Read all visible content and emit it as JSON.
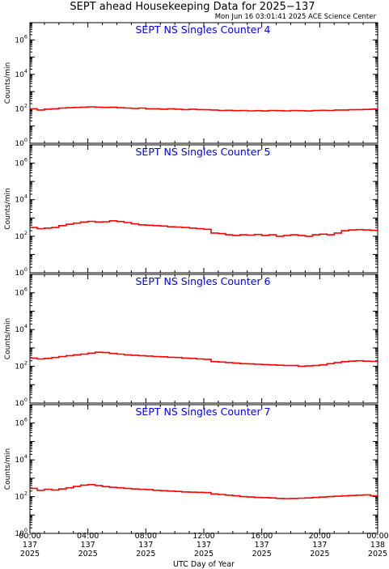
{
  "title": "SEPT ahead Housekeeping Data for 2025−137",
  "subtitle": "Mon Jun 16 03:01:41 2025 ACE Science Center",
  "xlabel": "UTC Day of Year",
  "colors": {
    "series": "#ff0000",
    "panel_title": "#0000ff",
    "axes": "#000000"
  },
  "chart_data": [
    {
      "type": "line",
      "title": "SEPT NS Singles Counter 4",
      "ylabel": "Counts/min",
      "yscale": "log",
      "ylim": [
        1,
        10000000
      ],
      "yticks": [
        {
          "base": "10",
          "exp": "0"
        },
        {
          "base": "10",
          "exp": "2"
        },
        {
          "base": "10",
          "exp": "4"
        },
        {
          "base": "10",
          "exp": "6"
        }
      ],
      "xlim": [
        0,
        24
      ],
      "x": [
        0,
        0.5,
        1,
        1.5,
        2,
        2.5,
        3,
        3.5,
        4,
        4.5,
        5,
        5.5,
        6,
        6.5,
        7,
        7.5,
        8,
        8.5,
        9,
        9.5,
        10,
        10.5,
        11,
        11.5,
        12,
        12.5,
        13,
        13.5,
        14,
        14.5,
        15,
        15.5,
        16,
        16.5,
        17,
        17.5,
        18,
        18.5,
        19,
        19.5,
        20,
        20.5,
        21,
        21.5,
        22,
        22.5,
        23,
        23.5
      ],
      "values": [
        100,
        85,
        95,
        100,
        110,
        115,
        120,
        125,
        130,
        125,
        120,
        125,
        115,
        110,
        105,
        110,
        100,
        100,
        95,
        100,
        95,
        90,
        95,
        90,
        88,
        85,
        80,
        82,
        78,
        80,
        76,
        78,
        75,
        80,
        78,
        76,
        80,
        78,
        75,
        80,
        82,
        80,
        85,
        85,
        88,
        90,
        92,
        95
      ]
    },
    {
      "type": "line",
      "title": "SEPT NS Singles Counter 5",
      "ylabel": "Counts/min",
      "yscale": "log",
      "ylim": [
        1,
        10000000
      ],
      "yticks": [
        {
          "base": "10",
          "exp": "0"
        },
        {
          "base": "10",
          "exp": "2"
        },
        {
          "base": "10",
          "exp": "4"
        },
        {
          "base": "10",
          "exp": "6"
        }
      ],
      "xlim": [
        0,
        24
      ],
      "x": [
        0,
        0.5,
        1,
        1.5,
        2,
        2.5,
        3,
        3.5,
        4,
        4.5,
        5,
        5.5,
        6,
        6.5,
        7,
        7.5,
        8,
        8.5,
        9,
        9.5,
        10,
        10.5,
        11,
        11.5,
        12,
        12.5,
        13,
        13.5,
        14,
        14.5,
        15,
        15.5,
        16,
        16.5,
        17,
        17.5,
        18,
        18.5,
        19,
        19.5,
        20,
        20.5,
        21,
        21.5,
        22,
        22.5,
        23,
        23.5
      ],
      "values": [
        300,
        260,
        280,
        300,
        380,
        450,
        520,
        600,
        650,
        600,
        620,
        700,
        640,
        560,
        480,
        420,
        400,
        380,
        360,
        330,
        320,
        300,
        280,
        260,
        240,
        150,
        140,
        120,
        110,
        120,
        115,
        125,
        110,
        120,
        100,
        110,
        120,
        110,
        100,
        120,
        130,
        120,
        150,
        200,
        220,
        230,
        220,
        210
      ]
    },
    {
      "type": "line",
      "title": "SEPT NS Singles Counter 6",
      "ylabel": "Counts/min",
      "yscale": "log",
      "ylim": [
        1,
        10000000
      ],
      "yticks": [
        {
          "base": "10",
          "exp": "0"
        },
        {
          "base": "10",
          "exp": "2"
        },
        {
          "base": "10",
          "exp": "4"
        },
        {
          "base": "10",
          "exp": "6"
        }
      ],
      "xlim": [
        0,
        24
      ],
      "x": [
        0,
        0.5,
        1,
        1.5,
        2,
        2.5,
        3,
        3.5,
        4,
        4.5,
        5,
        5.5,
        6,
        6.5,
        7,
        7.5,
        8,
        8.5,
        9,
        9.5,
        10,
        10.5,
        11,
        11.5,
        12,
        12.5,
        13,
        13.5,
        14,
        14.5,
        15,
        15.5,
        16,
        16.5,
        17,
        17.5,
        18,
        18.5,
        19,
        19.5,
        20,
        20.5,
        21,
        21.5,
        22,
        22.5,
        23,
        23.5
      ],
      "values": [
        280,
        250,
        270,
        300,
        340,
        380,
        420,
        460,
        520,
        580,
        560,
        500,
        460,
        420,
        400,
        380,
        360,
        340,
        330,
        310,
        300,
        280,
        270,
        250,
        240,
        180,
        170,
        160,
        150,
        140,
        135,
        130,
        125,
        120,
        115,
        110,
        110,
        100,
        105,
        110,
        120,
        140,
        160,
        180,
        190,
        200,
        190,
        185
      ]
    },
    {
      "type": "line",
      "title": "SEPT NS Singles Counter 7",
      "ylabel": "Counts/min",
      "yscale": "log",
      "ylim": [
        1,
        10000000
      ],
      "yticks": [
        {
          "base": "10",
          "exp": "0"
        },
        {
          "base": "10",
          "exp": "2"
        },
        {
          "base": "10",
          "exp": "4"
        },
        {
          "base": "10",
          "exp": "6"
        }
      ],
      "xlim": [
        0,
        24
      ],
      "x": [
        0,
        0.5,
        1,
        1.5,
        2,
        2.5,
        3,
        3.5,
        4,
        4.5,
        5,
        5.5,
        6,
        6.5,
        7,
        7.5,
        8,
        8.5,
        9,
        9.5,
        10,
        10.5,
        11,
        11.5,
        12,
        12.5,
        13,
        13.5,
        14,
        14.5,
        15,
        15.5,
        16,
        16.5,
        17,
        17.5,
        18,
        18.5,
        19,
        19.5,
        20,
        20.5,
        21,
        21.5,
        22,
        22.5,
        23,
        23.5
      ],
      "values": [
        280,
        220,
        250,
        230,
        260,
        300,
        360,
        420,
        450,
        400,
        350,
        320,
        300,
        280,
        260,
        250,
        240,
        220,
        210,
        200,
        190,
        180,
        175,
        170,
        165,
        140,
        130,
        120,
        110,
        100,
        95,
        90,
        88,
        85,
        80,
        78,
        80,
        82,
        85,
        90,
        95,
        100,
        105,
        110,
        115,
        120,
        125,
        110
      ]
    }
  ],
  "xticks": [
    {
      "time": "00:00",
      "doy": "137",
      "year": "2025"
    },
    {
      "time": "04:00",
      "doy": "137",
      "year": "2025"
    },
    {
      "time": "08:00",
      "doy": "137",
      "year": "2025"
    },
    {
      "time": "12:00",
      "doy": "137",
      "year": "2025"
    },
    {
      "time": "16:00",
      "doy": "137",
      "year": "2025"
    },
    {
      "time": "20:00",
      "doy": "137",
      "year": "2025"
    },
    {
      "time": "00:00",
      "doy": "138",
      "year": "2025"
    }
  ]
}
